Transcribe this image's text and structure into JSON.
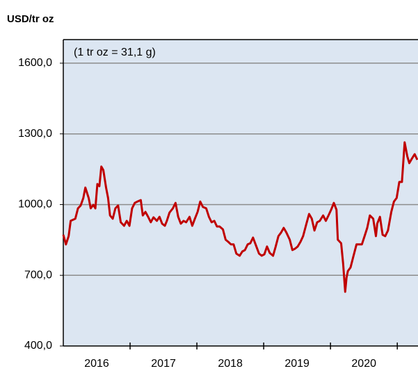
{
  "chart_data": {
    "type": "line",
    "title": "USD/tr oz",
    "annotation": "(1 tr oz = 31,1 g)",
    "x": [
      2016.0,
      2016.04,
      2016.08,
      2016.11,
      2016.18,
      2016.22,
      2016.26,
      2016.3,
      2016.33,
      2016.38,
      2016.41,
      2016.45,
      2016.48,
      2016.51,
      2016.54,
      2016.57,
      2016.6,
      2016.64,
      2016.67,
      2016.7,
      2016.74,
      2016.78,
      2016.82,
      2016.86,
      2016.91,
      2016.95,
      2016.99,
      2017.03,
      2017.07,
      2017.11,
      2017.16,
      2017.19,
      2017.23,
      2017.27,
      2017.31,
      2017.35,
      2017.4,
      2017.44,
      2017.48,
      2017.52,
      2017.55,
      2017.59,
      2017.64,
      2017.68,
      2017.72,
      2017.76,
      2017.8,
      2017.84,
      2017.89,
      2017.93,
      2017.97,
      2018.01,
      2018.05,
      2018.09,
      2018.14,
      2018.18,
      2018.22,
      2018.26,
      2018.3,
      2018.34,
      2018.39,
      2018.43,
      2018.47,
      2018.51,
      2018.55,
      2018.59,
      2018.64,
      2018.68,
      2018.72,
      2018.76,
      2018.8,
      2018.84,
      2018.89,
      2018.93,
      2018.97,
      2019.01,
      2019.05,
      2019.09,
      2019.14,
      2019.18,
      2019.22,
      2019.26,
      2019.3,
      2019.34,
      2019.39,
      2019.43,
      2019.47,
      2019.51,
      2019.55,
      2019.59,
      2019.64,
      2019.68,
      2019.72,
      2019.76,
      2019.8,
      2019.84,
      2019.89,
      2019.93,
      2019.97,
      2020.01,
      2020.05,
      2020.09,
      2020.11,
      2020.16,
      2020.19,
      2020.22,
      2020.24,
      2020.26,
      2020.3,
      2020.34,
      2020.39,
      2020.43,
      2020.47,
      2020.51,
      2020.55,
      2020.59,
      2020.64,
      2020.68,
      2020.7,
      2020.74,
      2020.78,
      2020.82,
      2020.86,
      2020.91,
      2020.95,
      2020.99,
      2021.03,
      2021.07,
      2021.11,
      2021.15,
      2021.18,
      2021.22,
      2021.26,
      2021.3
    ],
    "series": [
      {
        "name": "USD/tr oz",
        "color": "#c00000",
        "values": [
          872,
          831,
          866,
          931,
          940,
          984,
          996,
          1028,
          1072,
          1028,
          984,
          999,
          984,
          1087,
          1078,
          1161,
          1146,
          1072,
          1028,
          954,
          940,
          984,
          996,
          925,
          910,
          931,
          910,
          984,
          1007,
          1013,
          1019,
          954,
          969,
          948,
          925,
          946,
          931,
          948,
          919,
          910,
          931,
          966,
          984,
          1007,
          948,
          919,
          931,
          925,
          948,
          910,
          940,
          969,
          1013,
          990,
          984,
          948,
          925,
          931,
          907,
          907,
          895,
          851,
          842,
          831,
          831,
          792,
          783,
          801,
          807,
          831,
          836,
          860,
          822,
          792,
          783,
          789,
          822,
          795,
          783,
          822,
          866,
          881,
          901,
          881,
          851,
          807,
          813,
          822,
          842,
          866,
          919,
          960,
          940,
          890,
          925,
          931,
          954,
          931,
          954,
          978,
          1007,
          978,
          851,
          836,
          748,
          630,
          689,
          718,
          733,
          777,
          831,
          831,
          831,
          866,
          901,
          954,
          940,
          866,
          919,
          948,
          872,
          866,
          890,
          969,
          1013,
          1028,
          1096,
          1096,
          1264,
          1205,
          1176,
          1196,
          1214,
          1190
        ]
      }
    ],
    "xlim": [
      2016,
      2021.31
    ],
    "xticks": [
      2017,
      2018,
      2019,
      2020,
      2021
    ],
    "x_labels": [
      "2016",
      "2017",
      "2018",
      "2019",
      "2020"
    ],
    "ylim": [
      400,
      1700
    ],
    "yticks": [
      {
        "value": 400,
        "label": "400,0"
      },
      {
        "value": 700,
        "label": "700,0"
      },
      {
        "value": 1000,
        "label": "1000,0"
      },
      {
        "value": 1300,
        "label": "1300,0"
      },
      {
        "value": 1600,
        "label": "1600,0"
      }
    ],
    "grid": true
  }
}
